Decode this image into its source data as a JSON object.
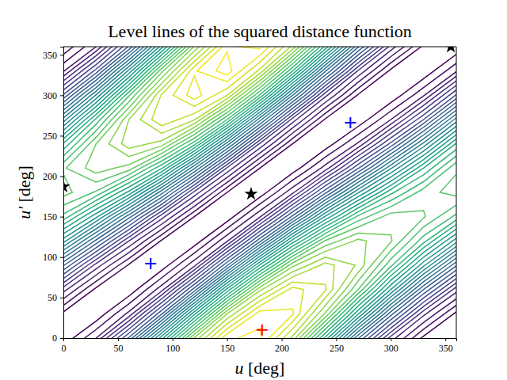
{
  "chart_data": {
    "type": "contour",
    "title": "Level lines of the squared distance function",
    "x_label": "u [deg]",
    "y_label": "u′ [deg]",
    "xlim": [
      0,
      360
    ],
    "ylim": [
      0,
      360
    ],
    "xticks": [
      0,
      50,
      100,
      150,
      200,
      250,
      300,
      350
    ],
    "yticks": [
      0,
      50,
      100,
      150,
      200,
      250,
      300,
      350
    ],
    "x": [
      0,
      30,
      60,
      90,
      120,
      150,
      180,
      210,
      240,
      270,
      300,
      330,
      360
    ],
    "y": [
      0,
      30,
      60,
      90,
      120,
      150,
      180,
      210,
      240,
      270,
      300,
      330,
      360
    ],
    "z": [
      [
        0.01,
        0.21,
        0.64,
        1.23,
        1.83,
        2.23,
        2.26,
        1.94,
        1.38,
        0.78,
        0.32,
        0.05,
        0.01
      ],
      [
        0.05,
        0.01,
        0.23,
        0.69,
        1.31,
        1.89,
        2.21,
        2.18,
        1.81,
        1.27,
        0.73,
        0.3,
        0.05
      ],
      [
        0.31,
        0.05,
        0.01,
        0.25,
        0.73,
        1.35,
        1.87,
        2.13,
        2.04,
        1.68,
        1.19,
        0.7,
        0.31
      ],
      [
        0.71,
        0.32,
        0.06,
        0.02,
        0.26,
        0.76,
        1.34,
        1.8,
        1.99,
        1.88,
        1.56,
        1.14,
        0.71
      ],
      [
        1.15,
        0.75,
        0.35,
        0.06,
        0.02,
        0.27,
        0.75,
        1.29,
        1.69,
        1.84,
        1.76,
        1.5,
        1.15
      ],
      [
        1.52,
        1.21,
        0.8,
        0.38,
        0.07,
        0.02,
        0.27,
        0.72,
        1.2,
        1.56,
        1.72,
        1.69,
        1.52
      ],
      [
        1.71,
        1.6,
        1.31,
        0.87,
        0.4,
        0.07,
        0.02,
        0.26,
        0.68,
        1.11,
        1.45,
        1.65,
        1.71
      ],
      [
        1.67,
        1.79,
        1.72,
        1.41,
        0.92,
        0.41,
        0.07,
        0.02,
        0.24,
        0.62,
        1.04,
        1.4,
        1.67
      ],
      [
        1.41,
        1.75,
        1.93,
        1.86,
        1.5,
        0.95,
        0.41,
        0.07,
        0.02,
        0.22,
        0.58,
        1.0,
        1.41
      ],
      [
        1.01,
        1.49,
        1.89,
        2.09,
        1.97,
        1.54,
        0.94,
        0.39,
        0.06,
        0.01,
        0.21,
        0.56,
        1.01
      ],
      [
        0.57,
        1.06,
        1.6,
        2.04,
        2.21,
        2.03,
        1.53,
        0.91,
        0.37,
        0.06,
        0.01,
        0.2,
        0.57
      ],
      [
        0.2,
        0.59,
        1.14,
        1.73,
        2.16,
        2.28,
        2.01,
        1.47,
        0.85,
        0.34,
        0.05,
        0.01,
        0.2
      ],
      [
        0.01,
        0.21,
        0.64,
        1.23,
        1.83,
        2.23,
        2.26,
        1.94,
        1.38,
        0.78,
        0.32,
        0.05,
        0.01
      ]
    ],
    "levels": [
      0.07,
      0.14,
      0.21,
      0.28,
      0.35,
      0.42,
      0.49,
      0.56,
      0.63,
      0.7,
      0.77,
      0.84,
      0.91,
      0.98,
      1.05,
      1.12,
      1.19,
      1.26,
      1.33,
      1.4,
      1.47,
      1.54,
      1.61,
      1.68,
      1.75,
      1.82,
      1.89,
      1.96,
      2.03,
      2.1,
      2.17,
      2.24
    ],
    "series": [
      {
        "type": "scatter",
        "color": "#0000ff",
        "marker": "plus",
        "x": [
          80,
          263
        ],
        "values": [
          92,
          266
        ]
      },
      {
        "type": "scatter",
        "color": "#ff0000",
        "marker": "plus",
        "x": [
          182
        ],
        "values": [
          10
        ]
      },
      {
        "type": "scatter",
        "color": "#000000",
        "marker": "star",
        "x": [
          172,
          0,
          355
        ],
        "values": [
          178,
          187,
          360
        ]
      }
    ]
  }
}
